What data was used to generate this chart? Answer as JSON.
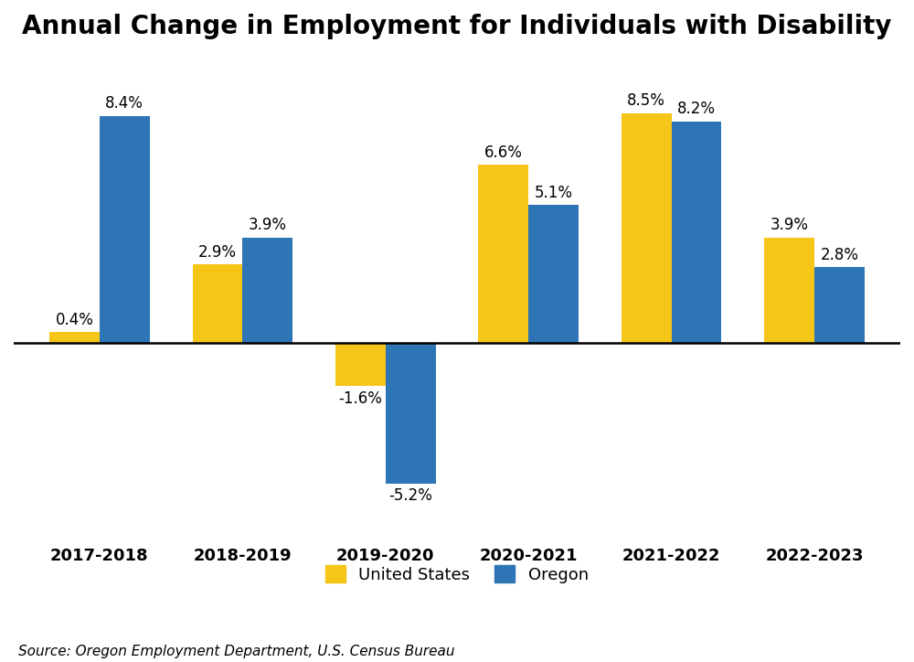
{
  "title": "Annual Change in Employment for Individuals with Disability",
  "categories": [
    "2017-2018",
    "2018-2019",
    "2019-2020",
    "2020-2021",
    "2021-2022",
    "2022-2023"
  ],
  "us_values": [
    0.4,
    2.9,
    -1.6,
    6.6,
    8.5,
    3.9
  ],
  "oregon_values": [
    8.4,
    3.9,
    -5.2,
    5.1,
    8.2,
    2.8
  ],
  "us_color": "#F5C518",
  "oregon_color": "#2E75B6",
  "bar_width": 0.35,
  "ylim": [
    -7.2,
    10.5
  ],
  "source_text": "Source: Oregon Employment Department, U.S. Census Bureau",
  "legend_us": "United States",
  "legend_oregon": "Oregon",
  "title_fontsize": 20,
  "label_fontsize": 12,
  "tick_fontsize": 13,
  "source_fontsize": 11,
  "legend_fontsize": 13,
  "background_color": "#ffffff"
}
